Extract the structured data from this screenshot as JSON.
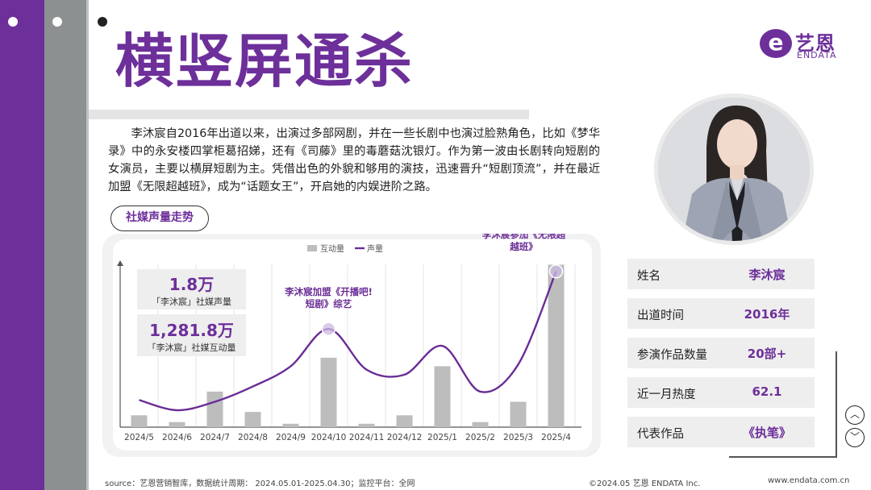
{
  "title": "横竖屏通杀",
  "logo": {
    "cn": "艺恩",
    "en": "ENDATA",
    "mark": "e"
  },
  "intro": "李沐宸自2016年出道以来，出演过多部网剧，并在一些长剧中也演过脸熟角色，比如《梦华录》中的永安楼四掌柜葛招娣，还有《司藤》里的毒蘑菇沈银灯。作为第一波由长剧转向短剧的女演员，主要以横屏短剧为主。凭借出色的外貌和够用的演技，迅速晋升“短剧顶流”，并在最近加盟《无限超越班》，成为“话题女王”，开启她的内娱进阶之路。",
  "section_tag": "社媒声量走势",
  "stats": [
    {
      "value": "1.8万",
      "label": "「李沐宸」社媒声量"
    },
    {
      "value": "1,281.8万",
      "label": "「李沐宸」社媒互动量"
    }
  ],
  "info": [
    {
      "label": "姓名",
      "value": "李沐宸"
    },
    {
      "label": "出道时间",
      "value": "2016年"
    },
    {
      "label": "参演作品数量",
      "value": "20部+"
    },
    {
      "label": "近一月热度",
      "value": "62.1"
    },
    {
      "label": "代表作品",
      "value": "《执笔》"
    }
  ],
  "nav": {
    "up": "︿",
    "down": "﹀"
  },
  "footer": {
    "source": "source：艺恩营销智库，数据统计周期：  2024.05.01-2025.04.30；监控平台：全网",
    "copyright": "©2024.05  艺恩  ENDATA Inc.",
    "url": "www.endata.com.cn"
  },
  "colors": {
    "brand": "#6d2f9a",
    "bar": "#bdbdbd",
    "line": "#6a2c96"
  },
  "chart_data": {
    "type": "bar",
    "categories": [
      "2024/5",
      "2024/6",
      "2024/7",
      "2024/8",
      "2024/9",
      "2024/10",
      "2024/11",
      "2024/12",
      "2025/1",
      "2025/2",
      "2025/3",
      "2025/4"
    ],
    "series": [
      {
        "name": "互动量",
        "type": "bar",
        "values": [
          7,
          3,
          21,
          9,
          2,
          41,
          2,
          7,
          36,
          3,
          15,
          96
        ]
      },
      {
        "name": "声量",
        "type": "line",
        "values": [
          16,
          10,
          15,
          24,
          36,
          58,
          34,
          31,
          48,
          21,
          37,
          92
        ]
      }
    ],
    "annotations": [
      {
        "index": 5,
        "text_lines": [
          "李沐宸加盟《开播吧!",
          "短剧》综艺"
        ]
      },
      {
        "index": 11,
        "text_lines": [
          "李沐宸参加《无限超",
          "越班》"
        ]
      }
    ],
    "ylim": [
      0,
      100
    ],
    "legend": "top-center",
    "grid": true
  }
}
